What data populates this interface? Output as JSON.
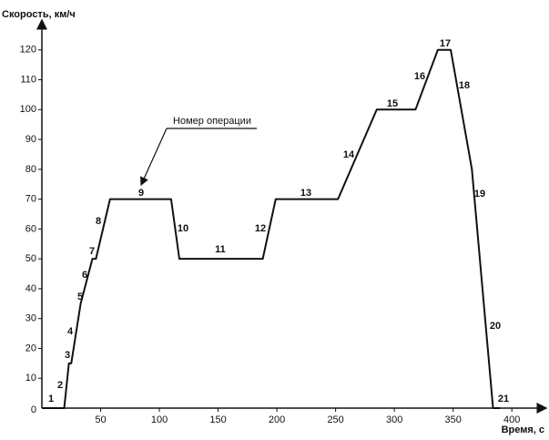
{
  "chart_data": {
    "type": "line",
    "y_label": "Скорость, км/ч",
    "x_label": "Время, с",
    "callout": "Номер операции",
    "annotations": [
      "1",
      "2",
      "3",
      "4",
      "5",
      "6",
      "7",
      "8",
      "9",
      "10",
      "11",
      "12",
      "13",
      "14",
      "15",
      "16",
      "17",
      "18",
      "19",
      "20",
      "21"
    ],
    "x": [
      0,
      19,
      23,
      25,
      33,
      43,
      46,
      58,
      110,
      117,
      188,
      199,
      252,
      285,
      318,
      337,
      348,
      366,
      384,
      390
    ],
    "series": [
      {
        "color": "#111111",
        "values": [
          0,
          0,
          15,
          15,
          35,
          50,
          50,
          70,
          70,
          50,
          50,
          70,
          70,
          100,
          100,
          120,
          120,
          80,
          0,
          0
        ]
      }
    ],
    "xlim": [
      0,
      420
    ],
    "ylim": [
      0,
      130
    ],
    "xticks": [
      0,
      50,
      100,
      150,
      200,
      250,
      300,
      350,
      400
    ],
    "yticks": [
      0,
      10,
      20,
      30,
      40,
      50,
      60,
      70,
      80,
      90,
      100,
      110,
      120
    ]
  }
}
